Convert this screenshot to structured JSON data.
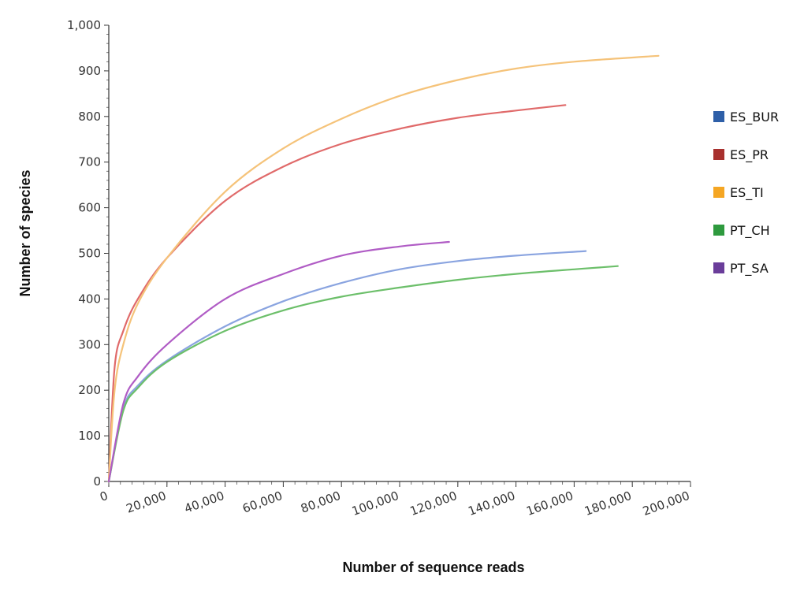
{
  "chart_data": {
    "type": "line",
    "title": "",
    "xlabel": "Number of sequence reads",
    "ylabel": "Number of species",
    "xlim": [
      0,
      200000
    ],
    "ylim": [
      0,
      1000
    ],
    "x_ticks": [
      "0",
      "20,000",
      "40,000",
      "60,000",
      "80,000",
      "100,000",
      "120,000",
      "140,000",
      "160,000",
      "180,000",
      "200,000"
    ],
    "y_ticks": [
      "0",
      "100",
      "200",
      "300",
      "400",
      "500",
      "600",
      "700",
      "800",
      "900",
      "1,000"
    ],
    "grid": false,
    "legend_position": "right",
    "series": [
      {
        "name": "ES_BUR",
        "color": "#2e5fa8",
        "line_color": "#8aa4e0",
        "points": [
          [
            0,
            0
          ],
          [
            5000,
            160
          ],
          [
            10000,
            210
          ],
          [
            20000,
            265
          ],
          [
            40000,
            340
          ],
          [
            60000,
            395
          ],
          [
            80000,
            435
          ],
          [
            100000,
            465
          ],
          [
            120000,
            483
          ],
          [
            140000,
            495
          ],
          [
            164000,
            505
          ]
        ]
      },
      {
        "name": "ES_PR",
        "color": "#a8302e",
        "line_color": "#e06a6a",
        "points": [
          [
            0,
            0
          ],
          [
            2000,
            250
          ],
          [
            5000,
            330
          ],
          [
            10000,
            400
          ],
          [
            20000,
            490
          ],
          [
            40000,
            615
          ],
          [
            60000,
            690
          ],
          [
            80000,
            740
          ],
          [
            100000,
            773
          ],
          [
            120000,
            797
          ],
          [
            140000,
            813
          ],
          [
            157000,
            825
          ]
        ]
      },
      {
        "name": "ES_TI",
        "color": "#f5a623",
        "line_color": "#f5c37a",
        "points": [
          [
            0,
            0
          ],
          [
            2000,
            200
          ],
          [
            5000,
            300
          ],
          [
            10000,
            390
          ],
          [
            20000,
            490
          ],
          [
            40000,
            635
          ],
          [
            60000,
            730
          ],
          [
            80000,
            795
          ],
          [
            100000,
            845
          ],
          [
            120000,
            880
          ],
          [
            140000,
            905
          ],
          [
            160000,
            920
          ],
          [
            189000,
            933
          ]
        ]
      },
      {
        "name": "PT_CH",
        "color": "#2e9a3e",
        "line_color": "#6cbf6a",
        "points": [
          [
            0,
            0
          ],
          [
            5000,
            155
          ],
          [
            10000,
            205
          ],
          [
            20000,
            262
          ],
          [
            40000,
            330
          ],
          [
            60000,
            375
          ],
          [
            80000,
            405
          ],
          [
            100000,
            425
          ],
          [
            120000,
            442
          ],
          [
            140000,
            455
          ],
          [
            160000,
            465
          ],
          [
            175000,
            472
          ]
        ]
      },
      {
        "name": "PT_SA",
        "color": "#6a3d9a",
        "line_color": "#b05cc5",
        "points": [
          [
            0,
            0
          ],
          [
            5000,
            170
          ],
          [
            10000,
            230
          ],
          [
            20000,
            300
          ],
          [
            40000,
            400
          ],
          [
            60000,
            455
          ],
          [
            80000,
            495
          ],
          [
            100000,
            515
          ],
          [
            117000,
            525
          ]
        ]
      }
    ]
  }
}
